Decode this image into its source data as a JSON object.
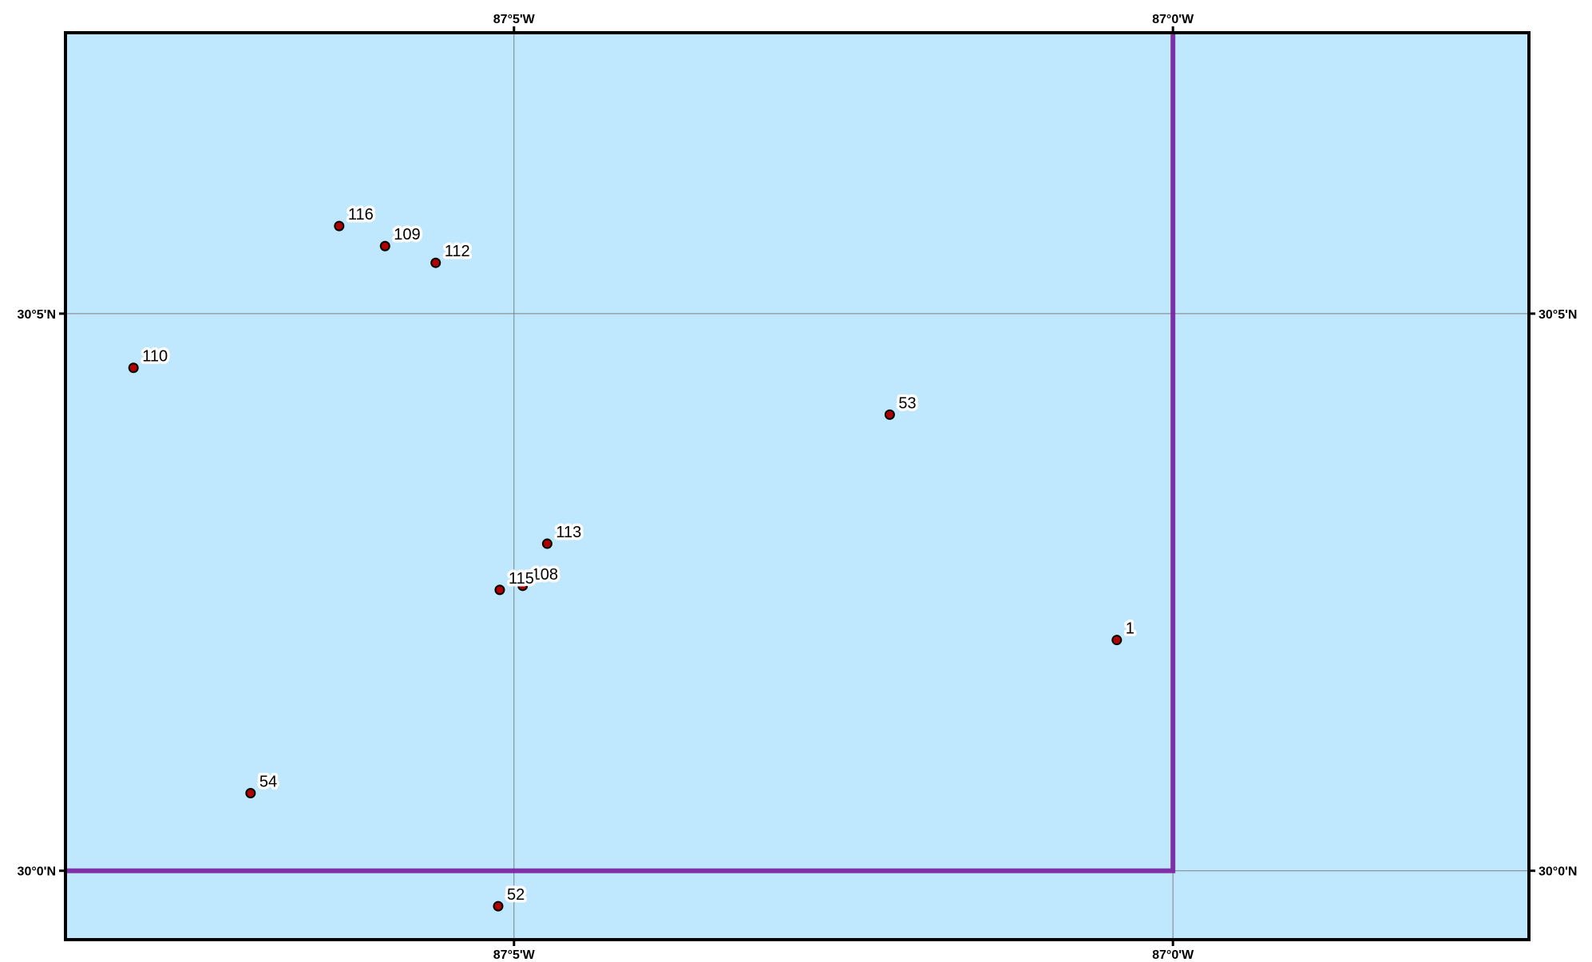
{
  "map": {
    "title": "",
    "background": "#ffffff",
    "water_color": "#bfe7fd",
    "frame_color": "#000000",
    "grid_color": "#808080",
    "boundary_color": "#7a1fa2",
    "station_fill": "#b00000",
    "lon_range": [
      -87.14,
      -86.955
    ],
    "lat_range": [
      29.9897,
      30.1253
    ],
    "lon_ticks": [
      {
        "value": -87.0833,
        "label": "87°5'W"
      },
      {
        "value": -87.0,
        "label": "87°0'W"
      }
    ],
    "lat_ticks": [
      {
        "value": 30.0833,
        "label": "30°5'N"
      },
      {
        "value": 30.0,
        "label": "30°0'N"
      }
    ],
    "boundary": [
      [
        -87.14,
        30.0
      ],
      [
        -87.0,
        30.0
      ],
      [
        -87.0,
        30.1253
      ]
    ],
    "stations": [
      {
        "id": "116",
        "lon": -87.1054,
        "lat": 30.0964
      },
      {
        "id": "109",
        "lon": -87.0996,
        "lat": 30.0934
      },
      {
        "id": "112",
        "lon": -87.0932,
        "lat": 30.0909
      },
      {
        "id": "110",
        "lon": -87.1314,
        "lat": 30.0752
      },
      {
        "id": "53",
        "lon": -87.0358,
        "lat": 30.0682
      },
      {
        "id": "113",
        "lon": -87.0791,
        "lat": 30.0489
      },
      {
        "id": "108",
        "lon": -87.0822,
        "lat": 30.0426
      },
      {
        "id": "115",
        "lon": -87.0851,
        "lat": 30.042
      },
      {
        "id": "1",
        "lon": -87.0071,
        "lat": 30.0345
      },
      {
        "id": "54",
        "lon": -87.1166,
        "lat": 30.0116
      },
      {
        "id": "52",
        "lon": -87.0853,
        "lat": 29.9947
      }
    ]
  }
}
